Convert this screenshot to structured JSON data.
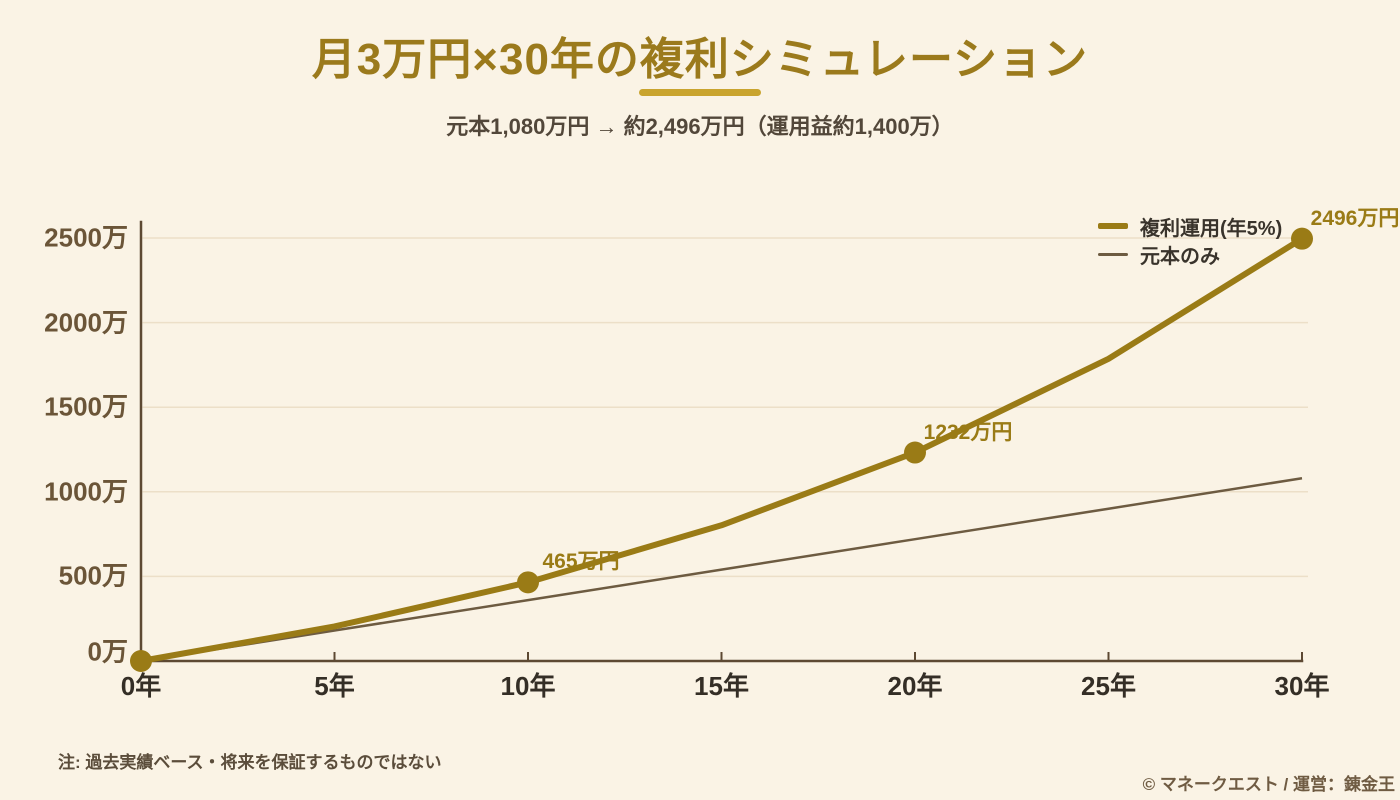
{
  "header": {
    "title": "月3万円×30年の複利シミュレーション",
    "subtitle": "元本1,080万円 → 約2,496万円（運用益約1,400万）"
  },
  "chart_data": {
    "type": "line",
    "title": "月3万円×30年の複利シミュレーション",
    "x": [
      0,
      5,
      10,
      15,
      20,
      25,
      30
    ],
    "xtick_labels": [
      "0年",
      "5年",
      "10年",
      "15年",
      "20年",
      "25年",
      "30年"
    ],
    "yticks": [
      0,
      500,
      1000,
      1500,
      2000,
      2500
    ],
    "ytick_labels": [
      "0万",
      "500万",
      "1000万",
      "1500万",
      "2000万",
      "2500万"
    ],
    "xlim": [
      0,
      30
    ],
    "ylim": [
      0,
      2500
    ],
    "grid": "horizontal-only",
    "legend_position": "top-right",
    "series": [
      {
        "name": "複利運用(年5%)",
        "values": [
          0,
          204,
          465,
          802,
          1232,
          1786,
          2496
        ],
        "color": "#9a7b16",
        "line_width": 6
      },
      {
        "name": "元本のみ",
        "values": [
          0,
          180,
          360,
          540,
          720,
          900,
          1080
        ],
        "color": "#6d5b41",
        "line_width": 2.5
      }
    ],
    "markers": {
      "series_index": 0,
      "years": [
        0,
        10,
        20,
        30
      ],
      "radius": 11
    },
    "point_labels": [
      {
        "year": 10,
        "label": "465万円"
      },
      {
        "year": 20,
        "label": "1232万円"
      },
      {
        "year": 30,
        "label": "2496万円"
      }
    ]
  },
  "colors": {
    "background": "#faf3e5",
    "title_gold": "#9b7a1c",
    "underline_gold": "#c9a42e",
    "axis_brown": "#5d4933",
    "gridline": "#ecdfc8",
    "compound_gold": "#9a7b16",
    "principal_brown": "#6d5b41"
  },
  "footer": {
    "note": "注: 過去実績ベース・将来を保証するものではない",
    "credit": "© マネークエスト / 運営：錬金王"
  }
}
